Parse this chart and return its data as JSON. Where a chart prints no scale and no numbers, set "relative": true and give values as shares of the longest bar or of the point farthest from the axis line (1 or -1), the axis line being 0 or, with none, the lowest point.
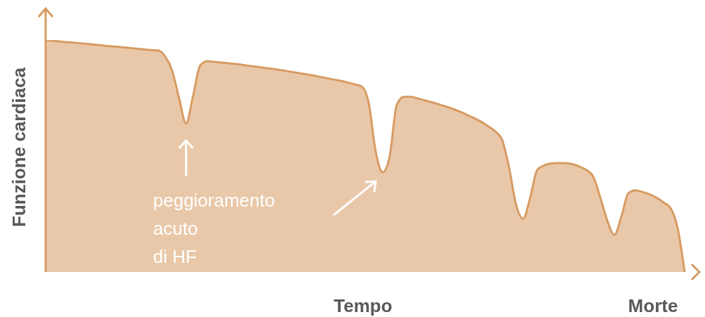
{
  "chart_data": {
    "type": "area",
    "relative": true,
    "xlabel": "Tempo",
    "ylabel": "Funzione cardiaca",
    "annotations": [
      "peggioramento\nacuto\ndi HF",
      "Morte"
    ],
    "categories": [
      null,
      null,
      null,
      null,
      null,
      null,
      null,
      null,
      null,
      null,
      null,
      null,
      null,
      null,
      null,
      null,
      null,
      null,
      null,
      null,
      null,
      null,
      null,
      null,
      null,
      null,
      null,
      null,
      null,
      null,
      null,
      null,
      null,
      null,
      null,
      null,
      null,
      null,
      null,
      null,
      null,
      null,
      null,
      null,
      null,
      null,
      null,
      null,
      null,
      null,
      null,
      null,
      null,
      null,
      null,
      null,
      null,
      null,
      null,
      null,
      null,
      null,
      null,
      null,
      null,
      null,
      null,
      null,
      null,
      null,
      null,
      null,
      null,
      null,
      null,
      null,
      null,
      null,
      null,
      null,
      null,
      null,
      null,
      null,
      null,
      null,
      null,
      null,
      null,
      null,
      null,
      null,
      null,
      null
    ],
    "series": [
      {
        "color": "#d79b63",
        "values": [
          1.0,
          0.997,
          0.994,
          0.991,
          0.989,
          0.986,
          0.983,
          0.98,
          0.977,
          0.974,
          0.972,
          0.969,
          0.966,
          0.963,
          0.96,
          0.957,
          0.955,
          0.93,
          0.87,
          0.75,
          0.64,
          0.76,
          0.89,
          0.909,
          0.906,
          0.903,
          0.9,
          0.897,
          0.893,
          0.889,
          0.885,
          0.881,
          0.877,
          0.873,
          0.868,
          0.863,
          0.858,
          0.853,
          0.848,
          0.842,
          0.836,
          0.83,
          0.824,
          0.817,
          0.809,
          0.8,
          0.73,
          0.52,
          0.43,
          0.5,
          0.72,
          0.755,
          0.755,
          0.748,
          0.74,
          0.732,
          0.723,
          0.714,
          0.703,
          0.691,
          0.678,
          0.664,
          0.648,
          0.629,
          0.607,
          0.57,
          0.45,
          0.29,
          0.23,
          0.32,
          0.44,
          0.46,
          0.468,
          0.47,
          0.47,
          0.465,
          0.455,
          0.44,
          0.41,
          0.32,
          0.22,
          0.16,
          0.24,
          0.34,
          0.352,
          0.345,
          0.335,
          0.32,
          0.3,
          0.275,
          0.19,
          0,
          null,
          null
        ]
      }
    ]
  }
}
